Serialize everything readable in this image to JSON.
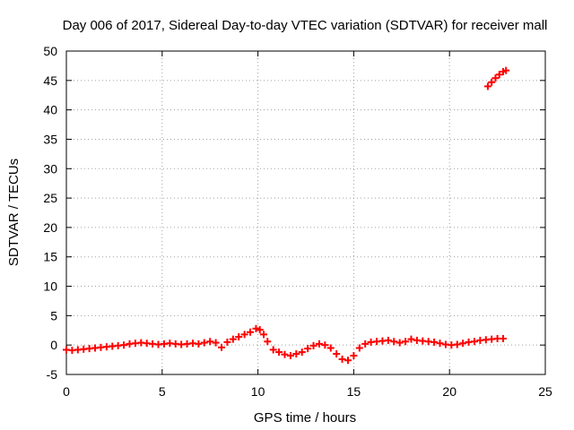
{
  "chart_data": {
    "type": "scatter",
    "title": "Day 006 of 2017, Sidereal Day-to-day VTEC variation (SDTVAR) for receiver mall",
    "xlabel": "GPS time / hours",
    "ylabel": "SDTVAR / TECUs",
    "xlim": [
      0,
      25
    ],
    "ylim": [
      -5,
      50
    ],
    "xticks": [
      0,
      5,
      10,
      15,
      20,
      25
    ],
    "yticks": [
      -5,
      0,
      5,
      10,
      15,
      20,
      25,
      30,
      35,
      40,
      45,
      50
    ],
    "grid": true,
    "series": [
      {
        "name": "SDTVAR",
        "color": "#ff0000",
        "marker": "plus",
        "x": [
          0.0,
          0.3,
          0.6,
          0.9,
          1.2,
          1.5,
          1.8,
          2.1,
          2.4,
          2.7,
          3.0,
          3.3,
          3.6,
          3.9,
          4.2,
          4.5,
          4.8,
          5.1,
          5.4,
          5.7,
          6.0,
          6.3,
          6.6,
          6.9,
          7.2,
          7.5,
          7.8,
          8.1,
          8.4,
          8.7,
          9.0,
          9.3,
          9.6,
          9.9,
          10.1,
          10.3,
          10.5,
          10.8,
          11.1,
          11.4,
          11.7,
          12.0,
          12.3,
          12.6,
          12.9,
          13.2,
          13.5,
          13.8,
          14.1,
          14.4,
          14.7,
          15.0,
          15.3,
          15.6,
          15.9,
          16.2,
          16.5,
          16.8,
          17.1,
          17.4,
          17.7,
          18.0,
          18.3,
          18.6,
          18.9,
          19.2,
          19.5,
          19.8,
          20.1,
          20.4,
          20.7,
          21.0,
          21.3,
          21.6,
          21.9,
          22.2,
          22.5,
          22.8,
          22.0,
          22.2,
          22.4,
          22.6,
          22.8,
          22.95
        ],
        "y": [
          -0.8,
          -0.9,
          -0.8,
          -0.7,
          -0.6,
          -0.5,
          -0.4,
          -0.3,
          -0.2,
          -0.1,
          0.0,
          0.2,
          0.3,
          0.4,
          0.3,
          0.2,
          0.1,
          0.2,
          0.3,
          0.2,
          0.1,
          0.2,
          0.3,
          0.2,
          0.4,
          0.6,
          0.4,
          -0.4,
          0.5,
          1.0,
          1.4,
          1.8,
          2.2,
          2.8,
          2.6,
          1.8,
          0.6,
          -0.8,
          -1.2,
          -1.6,
          -1.8,
          -1.5,
          -1.2,
          -0.6,
          -0.1,
          0.2,
          0.0,
          -0.5,
          -1.5,
          -2.4,
          -2.6,
          -1.8,
          -0.5,
          0.2,
          0.5,
          0.6,
          0.7,
          0.8,
          0.6,
          0.4,
          0.6,
          1.0,
          0.8,
          0.7,
          0.6,
          0.5,
          0.3,
          0.1,
          0.0,
          0.1,
          0.3,
          0.5,
          0.6,
          0.8,
          0.9,
          1.0,
          1.1,
          1.1,
          44.0,
          44.7,
          45.4,
          46.0,
          46.5,
          46.7
        ]
      }
    ]
  }
}
